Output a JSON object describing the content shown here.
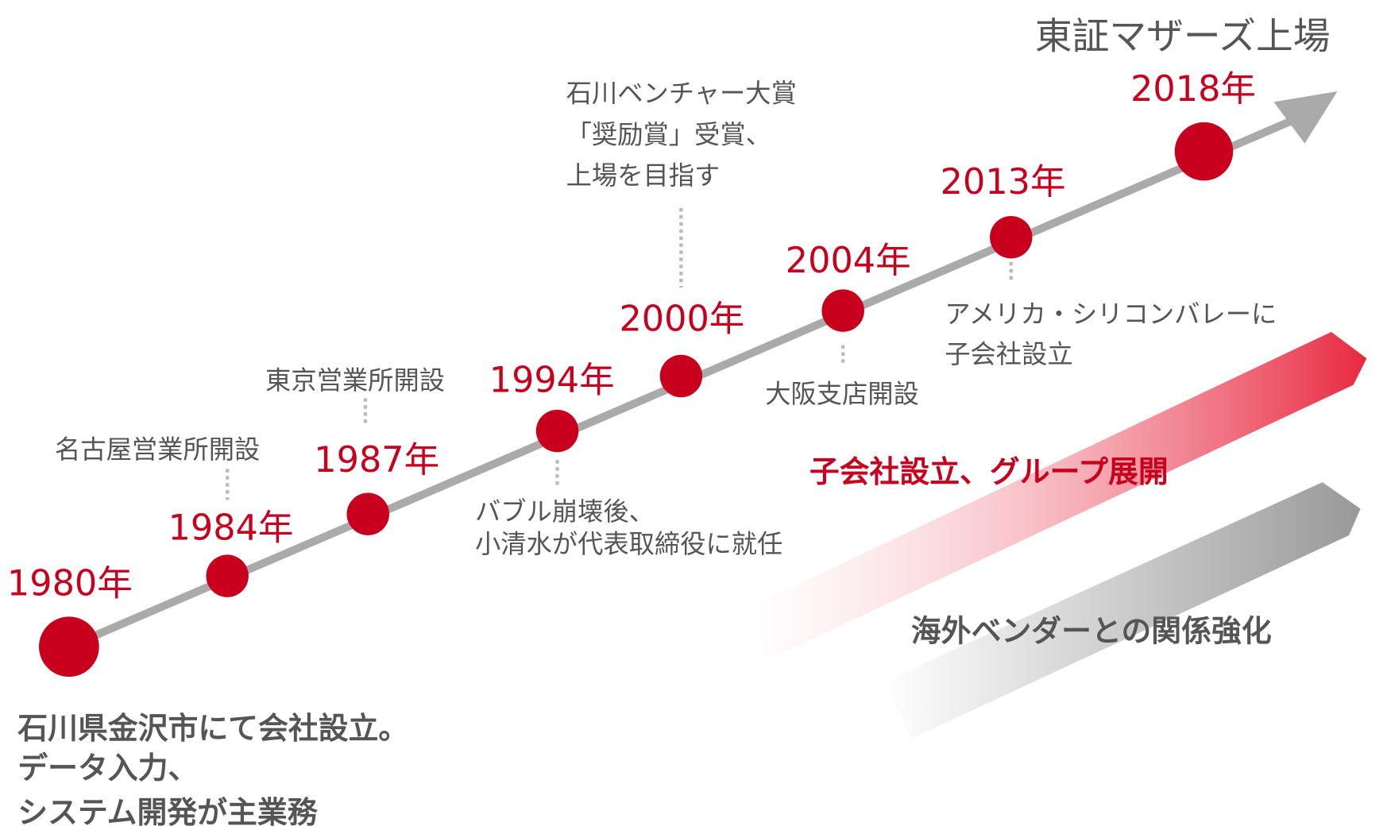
{
  "title": "東証マザーズ上場",
  "years": [
    "1980年",
    "1984年",
    "1987年",
    "1994年",
    "2000年",
    "2004年",
    "2013年",
    "2018年"
  ],
  "notes": {
    "founding": [
      "石川県金沢市にて会社設立。",
      "データ入力、",
      "システム開発が主業務"
    ],
    "nagoya": "名古屋営業所開設",
    "tokyo": "東京営業所開設",
    "bubble": [
      "バブル崩壊後、",
      "小清水が代表取締役に就任"
    ],
    "award": [
      "石川ベンチャー大賞",
      "「奨励賞」受賞、",
      "上場を目指す"
    ],
    "osaka": "大阪支店開設",
    "usa": [
      "アメリカ・シリコンバレーに",
      "子会社設立"
    ]
  },
  "bands": {
    "red": "子会社設立、グループ展開",
    "gray": "海外ベンダーとの関係強化"
  }
}
